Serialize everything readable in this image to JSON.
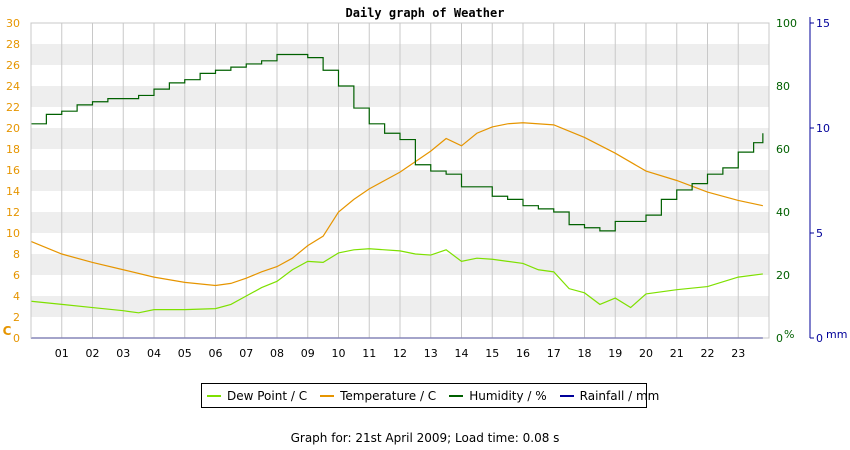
{
  "chart_data": {
    "type": "line",
    "title": "Daily graph of Weather",
    "x_tick_labels": [
      "01",
      "02",
      "03",
      "04",
      "05",
      "06",
      "07",
      "08",
      "09",
      "10",
      "11",
      "12",
      "13",
      "14",
      "15",
      "16",
      "17",
      "18",
      "19",
      "20",
      "21",
      "22",
      "23"
    ],
    "xlim": [
      0,
      24
    ],
    "axes": {
      "left": {
        "unit": "C",
        "min": 0,
        "max": 30,
        "ticks": [
          0,
          2,
          4,
          6,
          8,
          10,
          12,
          14,
          16,
          18,
          20,
          22,
          24,
          26,
          28,
          30
        ],
        "color": "#e69500"
      },
      "mid": {
        "unit": "%",
        "min": 0,
        "max": 100,
        "ticks": [
          0,
          20,
          40,
          60,
          80,
          100
        ],
        "color": "#006000"
      },
      "right": {
        "unit": "mm",
        "min": 0,
        "max": 15,
        "ticks": [
          0,
          5,
          10,
          15
        ],
        "color": "#000099"
      }
    },
    "series": [
      {
        "name": "Dew Point / C",
        "axis": "left",
        "color": "#7ee000",
        "x": [
          0,
          1,
          2,
          3,
          3.5,
          4,
          5,
          6,
          6.5,
          7,
          7.5,
          8,
          8.5,
          9,
          9.5,
          10,
          10.5,
          11,
          12,
          12.5,
          13,
          13.5,
          14,
          14.5,
          15,
          15.5,
          16,
          16.5,
          17,
          17.5,
          18,
          18.5,
          19,
          19.5,
          20,
          21,
          22,
          23,
          23.8
        ],
        "y": [
          3.5,
          3.2,
          2.9,
          2.6,
          2.4,
          2.7,
          2.7,
          2.8,
          3.2,
          4.0,
          4.8,
          5.4,
          6.5,
          7.3,
          7.2,
          8.1,
          8.4,
          8.5,
          8.3,
          8.0,
          7.9,
          8.4,
          7.3,
          7.6,
          7.5,
          7.3,
          7.1,
          6.5,
          6.3,
          4.7,
          4.3,
          3.2,
          3.8,
          2.9,
          4.2,
          4.6,
          4.9,
          5.8,
          6.1
        ]
      },
      {
        "name": "Temperature / C",
        "axis": "left",
        "color": "#e69500",
        "x": [
          0,
          1,
          2,
          3,
          4,
          5,
          6,
          6.5,
          7,
          7.5,
          8,
          8.5,
          9,
          9.5,
          10,
          10.5,
          11,
          11.5,
          12,
          12.5,
          13,
          13.5,
          14,
          14.5,
          15,
          15.5,
          16,
          17,
          18,
          19,
          20,
          21,
          22,
          23,
          23.8
        ],
        "y": [
          9.2,
          8.0,
          7.2,
          6.5,
          5.8,
          5.3,
          5.0,
          5.2,
          5.7,
          6.3,
          6.8,
          7.6,
          8.8,
          9.7,
          12.0,
          13.2,
          14.2,
          15.0,
          15.8,
          16.8,
          17.8,
          19.0,
          18.3,
          19.5,
          20.1,
          20.4,
          20.5,
          20.3,
          19.1,
          17.6,
          15.9,
          15.0,
          13.9,
          13.1,
          12.6
        ]
      },
      {
        "name": "Humidity / %",
        "axis": "mid",
        "color": "#006000",
        "x": [
          0,
          0.5,
          1,
          1.5,
          2,
          2.5,
          3,
          3.5,
          4,
          4.5,
          5,
          5.5,
          6,
          6.5,
          7,
          7.5,
          8,
          8.5,
          9,
          9.5,
          10,
          10.5,
          11,
          11.5,
          12,
          12.5,
          13,
          13.5,
          14,
          14.5,
          15,
          15.5,
          16,
          16.5,
          17,
          17.5,
          18,
          18.5,
          19,
          19.5,
          20,
          20.5,
          21,
          21.5,
          22,
          22.5,
          23,
          23.5,
          23.8
        ],
        "y": [
          68,
          71,
          72,
          74,
          75,
          76,
          76,
          77,
          79,
          81,
          82,
          84,
          85,
          86,
          87,
          88,
          90,
          90,
          89,
          85,
          80,
          73,
          68,
          65,
          63,
          55,
          53,
          52,
          48,
          48,
          45,
          44,
          42,
          41,
          40,
          36,
          35,
          34,
          37,
          37,
          39,
          44,
          47,
          49,
          52,
          54,
          59,
          62,
          65
        ]
      },
      {
        "name": "Rainfall / mm",
        "axis": "right",
        "color": "#000099",
        "x": [
          0,
          23.8
        ],
        "y": [
          0,
          0
        ]
      }
    ],
    "grid": true
  },
  "legend": {
    "items": [
      {
        "label": "Dew Point / C",
        "color": "#7ee000"
      },
      {
        "label": "Temperature / C",
        "color": "#e69500"
      },
      {
        "label": "Humidity / %",
        "color": "#006000"
      },
      {
        "label": "Rainfall / mm",
        "color": "#000099"
      }
    ]
  },
  "footer": {
    "text": "Graph for: 21st April 2009; Load time: 0.08 s"
  }
}
